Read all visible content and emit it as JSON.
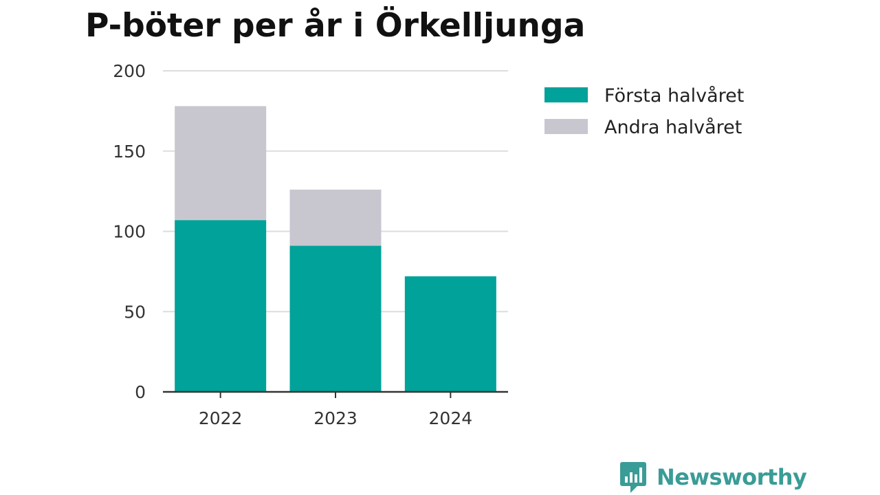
{
  "chart_data": {
    "type": "bar",
    "stacked": true,
    "title": "P-böter per år i Örkelljunga",
    "categories": [
      "2022",
      "2023",
      "2024"
    ],
    "series": [
      {
        "name": "Första halvåret",
        "values": [
          107,
          91,
          72
        ],
        "color": "#00a29a"
      },
      {
        "name": "Andra halvåret",
        "values": [
          71,
          35,
          0
        ],
        "color": "#c8c7cf"
      }
    ],
    "ylim": [
      0,
      200
    ],
    "yticks": [
      "0",
      "50",
      "100",
      "150",
      "200"
    ],
    "grid": true,
    "legend_position": "top-right",
    "xlabel": "",
    "ylabel": ""
  },
  "brand": {
    "name": "Newsworthy",
    "icon": "newsworthy-logo-icon",
    "color": "#3a9c96"
  }
}
